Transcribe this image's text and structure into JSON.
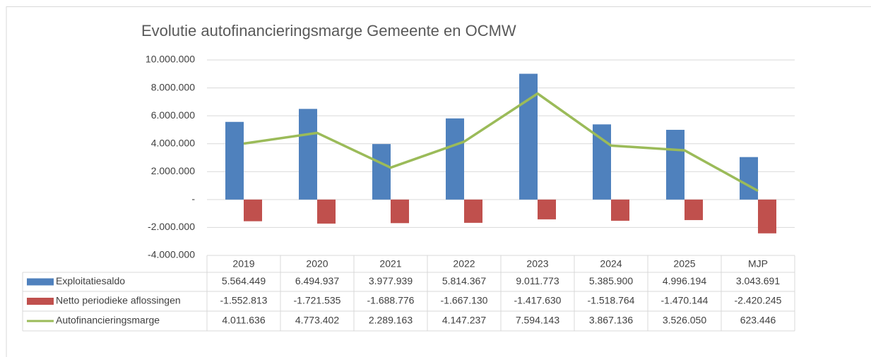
{
  "chart_data": {
    "type": "bar",
    "title": "Evolutie autofinancieringsmarge Gemeente en OCMW",
    "categories": [
      "2019",
      "2020",
      "2021",
      "2022",
      "2023",
      "2024",
      "2025",
      "MJP"
    ],
    "series": [
      {
        "name": "Exploitatiesaldo",
        "type": "bar",
        "color": "#4f81bd",
        "values": [
          5564449,
          6494937,
          3977939,
          5814367,
          9011773,
          5385900,
          4996194,
          3043691
        ],
        "value_labels": [
          "5.564.449",
          "6.494.937",
          "3.977.939",
          "5.814.367",
          "9.011.773",
          "5.385.900",
          "4.996.194",
          "3.043.691"
        ]
      },
      {
        "name": "Netto periodieke aflossingen",
        "type": "bar",
        "color": "#c0504d",
        "values": [
          -1552813,
          -1721535,
          -1688776,
          -1667130,
          -1417630,
          -1518764,
          -1470144,
          -2420245
        ],
        "value_labels": [
          "-1.552.813",
          "-1.721.535",
          "-1.688.776",
          "-1.667.130",
          "-1.417.630",
          "-1.518.764",
          "-1.470.144",
          "-2.420.245"
        ]
      },
      {
        "name": "Autofinancieringsmarge",
        "type": "line",
        "color": "#9bbb59",
        "values": [
          4011636,
          4773402,
          2289163,
          4147237,
          7594143,
          3867136,
          3526050,
          623446
        ],
        "value_labels": [
          "4.011.636",
          "4.773.402",
          "2.289.163",
          "4.147.237",
          "7.594.143",
          "3.867.136",
          "3.526.050",
          "623.446"
        ]
      }
    ],
    "ylim": [
      -4000000,
      10000000
    ],
    "yticks": [
      {
        "value": -4000000,
        "label": "-4.000.000"
      },
      {
        "value": -2000000,
        "label": "-2.000.000"
      },
      {
        "value": 0,
        "label": "-"
      },
      {
        "value": 2000000,
        "label": "2.000.000"
      },
      {
        "value": 4000000,
        "label": "4.000.000"
      },
      {
        "value": 6000000,
        "label": "6.000.000"
      },
      {
        "value": 8000000,
        "label": "8.000.000"
      },
      {
        "value": 10000000,
        "label": "10.000.000"
      }
    ],
    "grid": true
  }
}
